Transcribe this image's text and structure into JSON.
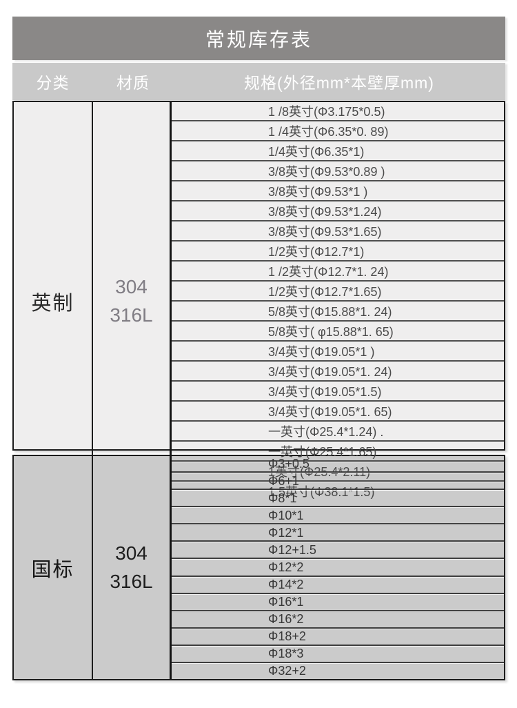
{
  "table": {
    "title": "常规库存表",
    "columns": [
      {
        "label": "分类"
      },
      {
        "label": "材质"
      },
      {
        "label": "规格(外径mm*本壁厚mm)"
      }
    ],
    "colors": {
      "title_bar_bg": "#8a8887",
      "title_text": "#ffffff",
      "header_bg": "#c9c9c9",
      "header_text": "#ffffff",
      "border_dark": "#1c1c1c"
    },
    "sections": [
      {
        "category": "英制",
        "material_lines": [
          "304",
          "316L"
        ],
        "theme": {
          "bg": "#efeeee",
          "spec_color": "#4a4a4a",
          "cat_color": "#2a2a2a",
          "mat_color": "#807d84",
          "sep_color": "#4c4c4c"
        },
        "specs": [
          "1 /8英寸(Φ3.175*0.5)",
          "1 /4英寸(Φ6.35*0. 89)",
          "1/4英寸(Φ6.35*1)",
          "3/8英寸(Φ9.53*0.89 )",
          "3/8英寸(Φ9.53*1 )",
          "3/8英寸(Φ9.53*1.24)",
          "3/8英寸(Φ9.53*1.65)",
          "1/2英寸(Φ12.7*1)",
          "1 /2英寸(Φ12.7*1. 24)",
          "1/2英寸(Φ12.7*1.65)",
          "5/8英寸(Φ15.88*1. 24)",
          "5/8英寸( φ15.88*1. 65)",
          "3/4英寸(Φ19.05*1 )",
          "3/4英寸(Φ19.05*1. 24)",
          "3/4英寸(Φ19.05*1.5)",
          "3/4英寸(Φ19.05*1. 65)",
          "一英寸(Φ25.4*1.24) .",
          "一英寸(Φ25.4*1.65)",
          "1英寸(Φ25.4*2.11)",
          "1.5英寸(Φ38.1*1.5)"
        ]
      },
      {
        "category": "国标",
        "material_lines": [
          "304",
          "316L"
        ],
        "theme": {
          "bg": "#cbcbcb",
          "spec_color": "#383838",
          "cat_color": "#161616",
          "mat_color": "#1d1d1d",
          "sep_color": "#3e3e3e"
        },
        "specs": [
          "Φ3+0.5",
          "Φ6+1",
          "Φ8*1",
          "Φ10*1",
          "Φ12*1",
          "Φ12+1.5",
          "Φ12*2",
          "Φ14*2",
          "Φ16*1",
          "Φ16*2",
          "Φ18+2",
          "Φ18*3",
          "Φ32+2"
        ]
      }
    ]
  }
}
